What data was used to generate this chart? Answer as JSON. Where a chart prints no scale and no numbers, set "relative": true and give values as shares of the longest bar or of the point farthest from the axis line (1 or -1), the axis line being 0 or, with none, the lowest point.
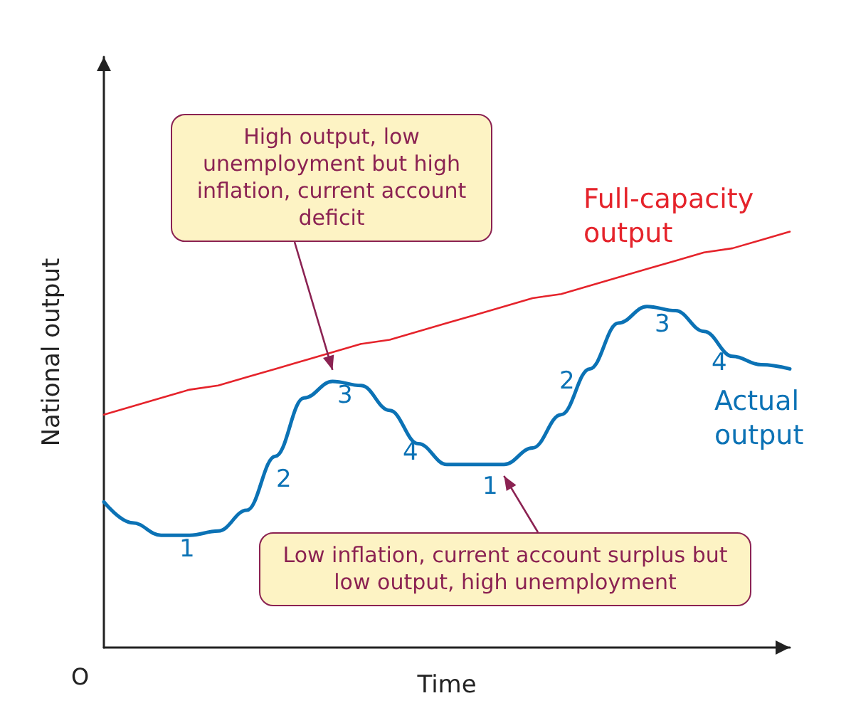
{
  "chart_data": {
    "type": "line",
    "relative": true,
    "xlabel": "Time",
    "ylabel": "National output",
    "categories": [
      null,
      null,
      null,
      null,
      null,
      null,
      null,
      null,
      null,
      null,
      null,
      null,
      null,
      null,
      null,
      null,
      null,
      null,
      null,
      null,
      null,
      null,
      null,
      null,
      null
    ],
    "series": [
      {
        "name": "Full-capacity output",
        "color": "#e5232b",
        "values": [
          0.56,
          0.58,
          0.6,
          0.62,
          0.63,
          0.65,
          0.67,
          0.69,
          0.71,
          0.73,
          0.74,
          0.76,
          0.78,
          0.8,
          0.82,
          0.84,
          0.85,
          0.87,
          0.89,
          0.91,
          0.93,
          0.95,
          0.96,
          0.98,
          1.0
        ]
      },
      {
        "name": "Actual output",
        "color": "#0b72b5",
        "values": [
          0.35,
          0.3,
          0.27,
          0.27,
          0.28,
          0.33,
          0.46,
          0.6,
          0.64,
          0.63,
          0.57,
          0.49,
          0.44,
          0.44,
          0.44,
          0.48,
          0.56,
          0.67,
          0.78,
          0.82,
          0.81,
          0.76,
          0.7,
          0.68,
          0.67
        ]
      }
    ],
    "annotations": [
      "High output, low unemployment but high inflation, current account deficit",
      "Low inflation, current account surplus but low output, high unemployment",
      "O",
      "1",
      "2",
      "3",
      "4",
      "1",
      "2",
      "3",
      "4"
    ],
    "grid": false,
    "legend": false,
    "marker": "none",
    "line_style": "solid"
  }
}
